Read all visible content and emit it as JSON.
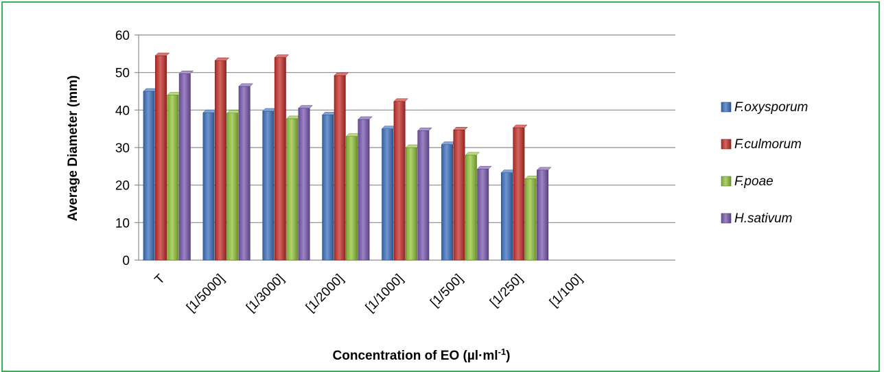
{
  "chart_data": {
    "type": "bar",
    "categories": [
      "T",
      "[1/5000]",
      "[1/3000]",
      "[1/2000]",
      "[1/1000]",
      "[1/500]",
      "[1/250]",
      "[1/100]"
    ],
    "series": [
      {
        "name": "F.oxysporum",
        "color": "#3f72bf",
        "values": [
          45,
          39.3,
          39.7,
          38.7,
          35,
          30.8,
          23.3,
          0
        ]
      },
      {
        "name": "F.culmorum",
        "color": "#c5302b",
        "values": [
          54.5,
          53.2,
          54,
          49.2,
          42.3,
          34.7,
          35.3,
          0
        ]
      },
      {
        "name": "F.poae",
        "color": "#93c43c",
        "values": [
          44,
          39.2,
          37.7,
          33,
          30,
          28,
          21.7,
          0
        ]
      },
      {
        "name": "H.sativum",
        "color": "#7a5ab0",
        "values": [
          49.7,
          46.3,
          40.5,
          37.5,
          34.5,
          24.3,
          24,
          0
        ]
      }
    ],
    "yticks": [
      "0",
      "10",
      "20",
      "30",
      "40",
      "50",
      "60"
    ],
    "ylim": [
      0,
      60
    ],
    "xlabel_main": "Concentration of EO (µl·ml",
    "xlabel_sup": "-1",
    "xlabel_end": ")",
    "ylabel": "Average Diameter (mm)",
    "grid": true,
    "legend_position": "right"
  }
}
